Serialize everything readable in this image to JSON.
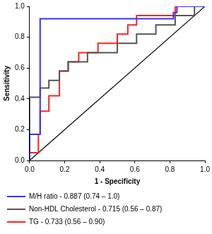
{
  "chart_data": {
    "type": "line",
    "x_label": "1 - Specificity",
    "y_label": "Sensitivity",
    "xlim": [
      0,
      1
    ],
    "ylim": [
      0,
      1
    ],
    "xticks": [
      {
        "value": 0,
        "label": "0.0"
      },
      {
        "value": 0.2,
        "label": "0.2"
      },
      {
        "value": 0.4,
        "label": "0.4"
      },
      {
        "value": 0.6,
        "label": "0.6"
      },
      {
        "value": 0.8,
        "label": "0.8"
      },
      {
        "value": 1,
        "label": "1.0"
      }
    ],
    "yticks": [
      {
        "value": 0,
        "label": "0.0"
      },
      {
        "value": 0.2,
        "label": "0.2"
      },
      {
        "value": 0.4,
        "label": "0.4"
      },
      {
        "value": 0.6,
        "label": "0.6"
      },
      {
        "value": 0.8,
        "label": "0.8"
      },
      {
        "value": 1,
        "label": "1.0"
      }
    ],
    "grid": false,
    "legend": "bottom",
    "series": [
      {
        "name": "M/H ratio - 0.887 (0.74 – 1.0)",
        "color": "#3333ff",
        "x": [
          0,
          0,
          0.06,
          0.06,
          0.82,
          0.82,
          0.84,
          0.84,
          1
        ],
        "values": [
          0,
          0.17,
          0.17,
          0.92,
          0.92,
          0.96,
          0.96,
          1,
          1
        ]
      },
      {
        "name": "Non-HDL Cholesterol - 0.715 (0.56 – 0.87)",
        "color": "#555555",
        "x": [
          0,
          0,
          0.06,
          0.06,
          0.11,
          0.11,
          0.17,
          0.17,
          0.22,
          0.22,
          0.33,
          0.33,
          0.5,
          0.5,
          0.61,
          0.61,
          0.72,
          0.72,
          0.83,
          0.83,
          0.94,
          0.94,
          1
        ],
        "values": [
          0,
          0.41,
          0.41,
          0.47,
          0.47,
          0.52,
          0.52,
          0.58,
          0.58,
          0.64,
          0.64,
          0.7,
          0.7,
          0.76,
          0.76,
          0.82,
          0.82,
          0.88,
          0.88,
          0.94,
          0.94,
          1,
          1
        ]
      },
      {
        "name": "TG - 0.733 (0.56 – 0.90)",
        "color": "#ff2222",
        "x": [
          0,
          0,
          0.05,
          0.05,
          0.06,
          0.06,
          0.11,
          0.11,
          0.17,
          0.17,
          0.22,
          0.22,
          0.28,
          0.28,
          0.39,
          0.39,
          0.5,
          0.5,
          0.56,
          0.56,
          0.61,
          0.61,
          0.83,
          0.83,
          1
        ],
        "values": [
          0,
          0.05,
          0.05,
          0.17,
          0.17,
          0.32,
          0.32,
          0.42,
          0.42,
          0.58,
          0.58,
          0.64,
          0.64,
          0.7,
          0.7,
          0.76,
          0.76,
          0.82,
          0.82,
          0.88,
          0.88,
          0.94,
          0.94,
          1,
          1
        ]
      },
      {
        "color": "#000000",
        "x": [
          0,
          1
        ],
        "values": [
          0,
          1
        ]
      }
    ]
  }
}
